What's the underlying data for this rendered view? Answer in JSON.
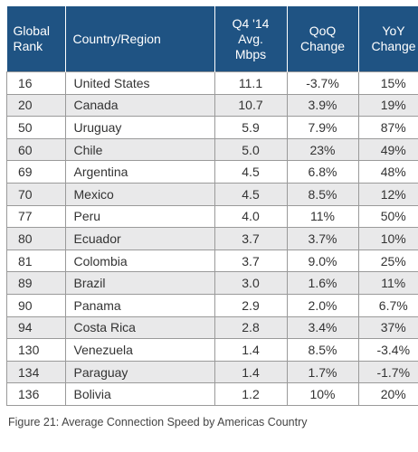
{
  "header": {
    "rank": [
      "Global",
      "Rank"
    ],
    "country": "Country/Region",
    "speed": [
      "Q4 '14",
      "Avg.",
      "Mbps"
    ],
    "qoq": [
      "QoQ",
      "Change"
    ],
    "yoy": [
      "YoY",
      "Change"
    ]
  },
  "rows": [
    {
      "rank": "16",
      "country": "United States",
      "speed": "11.1",
      "qoq": "-3.7%",
      "yoy": "15%"
    },
    {
      "rank": "20",
      "country": "Canada",
      "speed": "10.7",
      "qoq": "3.9%",
      "yoy": "19%"
    },
    {
      "rank": "50",
      "country": "Uruguay",
      "speed": "5.9",
      "qoq": "7.9%",
      "yoy": "87%"
    },
    {
      "rank": "60",
      "country": "Chile",
      "speed": "5.0",
      "qoq": "23%",
      "yoy": "49%"
    },
    {
      "rank": "69",
      "country": "Argentina",
      "speed": "4.5",
      "qoq": "6.8%",
      "yoy": "48%"
    },
    {
      "rank": "70",
      "country": "Mexico",
      "speed": "4.5",
      "qoq": "8.5%",
      "yoy": "12%"
    },
    {
      "rank": "77",
      "country": "Peru",
      "speed": "4.0",
      "qoq": "11%",
      "yoy": "50%"
    },
    {
      "rank": "80",
      "country": "Ecuador",
      "speed": "3.7",
      "qoq": "3.7%",
      "yoy": "10%"
    },
    {
      "rank": "81",
      "country": "Colombia",
      "speed": "3.7",
      "qoq": "9.0%",
      "yoy": "25%"
    },
    {
      "rank": "89",
      "country": "Brazil",
      "speed": "3.0",
      "qoq": "1.6%",
      "yoy": "11%"
    },
    {
      "rank": "90",
      "country": "Panama",
      "speed": "2.9",
      "qoq": "2.0%",
      "yoy": "6.7%"
    },
    {
      "rank": "94",
      "country": "Costa Rica",
      "speed": "2.8",
      "qoq": "3.4%",
      "yoy": "37%"
    },
    {
      "rank": "130",
      "country": "Venezuela",
      "speed": "1.4",
      "qoq": "8.5%",
      "yoy": "-3.4%"
    },
    {
      "rank": "134",
      "country": "Paraguay",
      "speed": "1.4",
      "qoq": "1.7%",
      "yoy": "-1.7%"
    },
    {
      "rank": "136",
      "country": "Bolivia",
      "speed": "1.2",
      "qoq": "10%",
      "yoy": "20%"
    }
  ],
  "caption": "Figure 21: Average Connection Speed by Americas Country"
}
